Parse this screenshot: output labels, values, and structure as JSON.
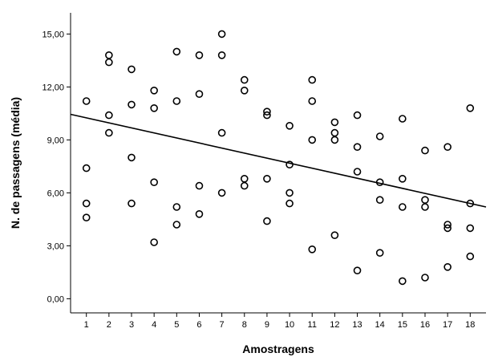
{
  "chart_data": {
    "type": "scatter",
    "title": "",
    "xlabel": "Amostragens",
    "ylabel": "N. de passagens (média)",
    "xlim": [
      0.3,
      18.7
    ],
    "ylim": [
      -0.8,
      16.2
    ],
    "x_ticks": [
      1,
      2,
      3,
      4,
      5,
      6,
      7,
      8,
      9,
      10,
      11,
      12,
      13,
      14,
      15,
      16,
      17,
      18
    ],
    "x_tick_labels": [
      "1",
      "2",
      "3",
      "4",
      "5",
      "6",
      "7",
      "8",
      "9",
      "10",
      "11",
      "12",
      "13",
      "14",
      "15",
      "16",
      "17",
      "18"
    ],
    "y_ticks": [
      0,
      3,
      6,
      9,
      12,
      15
    ],
    "y_tick_labels": [
      "0,00",
      "3,00",
      "6,00",
      "9,00",
      "12,00",
      "15,00"
    ],
    "grid": false,
    "marker": "open-circle",
    "points": [
      [
        1,
        11.2
      ],
      [
        1,
        7.4
      ],
      [
        1,
        5.4
      ],
      [
        1,
        4.6
      ],
      [
        2,
        13.8
      ],
      [
        2,
        13.4
      ],
      [
        2,
        10.4
      ],
      [
        2,
        9.4
      ],
      [
        3,
        13.0
      ],
      [
        3,
        11.0
      ],
      [
        3,
        8.0
      ],
      [
        3,
        5.4
      ],
      [
        4,
        11.8
      ],
      [
        4,
        10.8
      ],
      [
        4,
        6.6
      ],
      [
        4,
        3.2
      ],
      [
        5,
        14.0
      ],
      [
        5,
        11.2
      ],
      [
        5,
        5.2
      ],
      [
        5,
        4.2
      ],
      [
        6,
        13.8
      ],
      [
        6,
        11.6
      ],
      [
        6,
        6.4
      ],
      [
        6,
        4.8
      ],
      [
        7,
        15.0
      ],
      [
        7,
        13.8
      ],
      [
        7,
        9.4
      ],
      [
        7,
        6.0
      ],
      [
        8,
        12.4
      ],
      [
        8,
        11.8
      ],
      [
        8,
        6.8
      ],
      [
        8,
        6.4
      ],
      [
        9,
        10.6
      ],
      [
        9,
        10.4
      ],
      [
        9,
        6.8
      ],
      [
        9,
        4.4
      ],
      [
        10,
        9.8
      ],
      [
        10,
        7.6
      ],
      [
        10,
        6.0
      ],
      [
        10,
        5.4
      ],
      [
        11,
        12.4
      ],
      [
        11,
        11.2
      ],
      [
        11,
        9.0
      ],
      [
        11,
        2.8
      ],
      [
        12,
        10.0
      ],
      [
        12,
        9.4
      ],
      [
        12,
        9.0
      ],
      [
        12,
        3.6
      ],
      [
        13,
        10.4
      ],
      [
        13,
        8.6
      ],
      [
        13,
        7.2
      ],
      [
        13,
        1.6
      ],
      [
        14,
        9.2
      ],
      [
        14,
        6.6
      ],
      [
        14,
        5.6
      ],
      [
        14,
        2.6
      ],
      [
        15,
        10.2
      ],
      [
        15,
        6.8
      ],
      [
        15,
        5.2
      ],
      [
        15,
        1.0
      ],
      [
        16,
        8.4
      ],
      [
        16,
        5.6
      ],
      [
        16,
        5.2
      ],
      [
        16,
        1.2
      ],
      [
        17,
        8.6
      ],
      [
        17,
        4.2
      ],
      [
        17,
        4.0
      ],
      [
        17,
        1.8
      ],
      [
        18,
        10.8
      ],
      [
        18,
        5.4
      ],
      [
        18,
        4.0
      ],
      [
        18,
        2.4
      ]
    ],
    "trendline": {
      "x": [
        0.3,
        18.7
      ],
      "y": [
        10.45,
        5.2
      ]
    },
    "colors": {
      "marker": "#000000",
      "line": "#000000",
      "background": "#ffffff"
    }
  }
}
